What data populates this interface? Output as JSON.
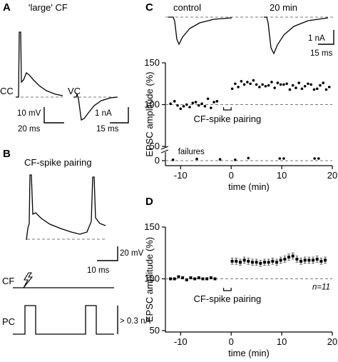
{
  "panels": {
    "A": {
      "label": "A",
      "title": "'large' CF",
      "cc_label": "CC",
      "vc_label": "VC",
      "cc_scale_v": "10 mV",
      "cc_scale_t": "20 ms",
      "vc_scale_i": "1 nA",
      "vc_scale_t": "15 ms"
    },
    "B": {
      "label": "B",
      "title": "CF-spike pairing",
      "scale_v": "20 mV",
      "scale_t": "10 ms",
      "cf_label": "CF",
      "pc_label": "PC",
      "pc_amp": "> 0.3 nA"
    },
    "C": {
      "label": "C",
      "trace_left": "control",
      "trace_right": "20 min",
      "scale_i": "1 nA",
      "scale_t": "15 ms"
    },
    "D": {
      "label": "D"
    }
  },
  "chart_data": [
    {
      "panel": "C",
      "type": "scatter",
      "xlabel": "time (min)",
      "ylabel": "EPSC amplitude (%)",
      "xlim": [
        -13,
        20
      ],
      "ylim": [
        0,
        150
      ],
      "axis_break": true,
      "xticks": [
        "-10",
        "0",
        "10",
        "20"
      ],
      "yticks": [
        "0",
        "50",
        "100",
        "150"
      ],
      "baseline": 100,
      "annotation": "CF-spike pairing",
      "pairing_window": [
        -1.5,
        0
      ],
      "failures_label": "failures",
      "series": [
        {
          "x": [
            -12,
            -11.2,
            -10.6,
            -10,
            -9.4,
            -8.8,
            -8.2,
            -7.6,
            -7,
            -6.4,
            -5.8,
            -5.2,
            -4.6,
            -4,
            -3.4,
            -2.8
          ],
          "y": [
            101,
            104,
            99,
            95,
            98,
            100,
            97,
            102,
            103,
            99,
            101,
            98,
            107,
            96,
            103,
            104
          ]
        },
        {
          "x": [
            0.2,
            0.8,
            1.4,
            2,
            2.6,
            3.2,
            3.8,
            4.4,
            5,
            5.6,
            6.2,
            6.8,
            7.4,
            8,
            8.6,
            9.2,
            9.8,
            10.4,
            11,
            11.6,
            12.2,
            12.8,
            13.4,
            14,
            14.6,
            15.2,
            15.8,
            16.4,
            17,
            17.6,
            18.2,
            18.8,
            19.4
          ],
          "y": [
            119,
            125,
            121,
            128,
            124,
            127,
            125,
            129,
            124,
            121,
            124,
            122,
            123,
            127,
            120,
            126,
            124,
            124,
            125,
            118,
            123,
            120,
            126,
            119,
            122,
            125,
            124,
            118,
            119,
            123,
            126,
            118,
            121
          ]
        },
        {
          "name": "failures",
          "x": [
            -11.5,
            -6.8,
            -2.2,
            0.8,
            3.4,
            9.6,
            10.4,
            16.5,
            17.3
          ],
          "y": [
            1,
            2,
            1.5,
            1,
            3,
            2.5,
            2.5,
            2.5,
            2.5
          ]
        }
      ]
    },
    {
      "panel": "D",
      "type": "scatter",
      "xlabel": "time (min)",
      "ylabel": "EPSC amplitude (%)",
      "xlim": [
        -13,
        20
      ],
      "ylim": [
        50,
        150
      ],
      "xticks": [
        "-10",
        "0",
        "10",
        "20"
      ],
      "yticks": [
        "50",
        "100",
        "150"
      ],
      "baseline": 100,
      "annotation": "CF-spike pairing",
      "n_label": "n=11",
      "series": [
        {
          "x": [
            -12,
            -11.2,
            -10.4,
            -9.6,
            -8.8,
            -8,
            -7.2,
            -6.4,
            -5.6,
            -4.8,
            -4,
            -3.2
          ],
          "y": [
            100,
            100,
            102,
            101,
            99,
            101,
            100,
            101,
            100,
            100,
            101,
            100
          ],
          "err": [
            1,
            1,
            1,
            1,
            1,
            1,
            1,
            1,
            1,
            1,
            1,
            1
          ]
        },
        {
          "x": [
            0.2,
            1,
            1.8,
            2.6,
            3.4,
            4.2,
            5,
            5.8,
            6.6,
            7.4,
            8.2,
            9,
            9.8,
            10.6,
            11.4,
            12.2,
            13,
            13.8,
            14.6,
            15.4,
            16.2,
            17,
            17.8,
            18.6
          ],
          "y": [
            117,
            117,
            116,
            118,
            117,
            116,
            116,
            115,
            116,
            116,
            117,
            116,
            118,
            119,
            121,
            122,
            119,
            117,
            118,
            118,
            118,
            119,
            117,
            118
          ],
          "err": [
            3,
            3,
            3,
            3,
            3,
            3,
            3,
            3,
            3,
            3,
            3,
            3,
            3,
            3,
            3,
            3,
            3,
            3,
            3,
            3,
            3,
            3,
            3,
            3
          ]
        }
      ]
    }
  ]
}
